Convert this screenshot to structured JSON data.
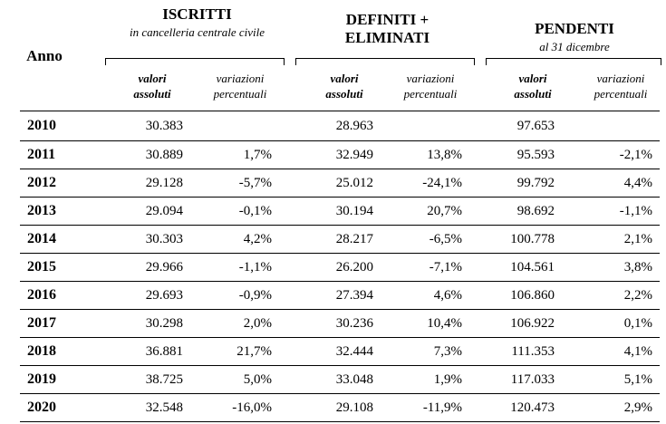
{
  "header": {
    "anno": "Anno",
    "groups": [
      {
        "title": "ISCRITTI",
        "subtitle": "in cancelleria centrale civile"
      },
      {
        "title": "DEFINITI  +\nELIMINATI",
        "subtitle": ""
      },
      {
        "title": "PENDENTI",
        "subtitle": "al 31 dicembre"
      }
    ],
    "sub_abs": "valori\nassoluti",
    "sub_var": "variazioni\npercentuali"
  },
  "rows": [
    {
      "anno": "2010",
      "iscr": "30.383",
      "iscr_var": "",
      "def": "28.963",
      "def_var": "",
      "pend": "97.653",
      "pend_var": ""
    },
    {
      "anno": "2011",
      "iscr": "30.889",
      "iscr_var": "1,7%",
      "def": "32.949",
      "def_var": "13,8%",
      "pend": "95.593",
      "pend_var": "-2,1%"
    },
    {
      "anno": "2012",
      "iscr": "29.128",
      "iscr_var": "-5,7%",
      "def": "25.012",
      "def_var": "-24,1%",
      "pend": "99.792",
      "pend_var": "4,4%"
    },
    {
      "anno": "2013",
      "iscr": "29.094",
      "iscr_var": "-0,1%",
      "def": "30.194",
      "def_var": "20,7%",
      "pend": "98.692",
      "pend_var": "-1,1%"
    },
    {
      "anno": "2014",
      "iscr": "30.303",
      "iscr_var": "4,2%",
      "def": "28.217",
      "def_var": "-6,5%",
      "pend": "100.778",
      "pend_var": "2,1%"
    },
    {
      "anno": "2015",
      "iscr": "29.966",
      "iscr_var": "-1,1%",
      "def": "26.200",
      "def_var": "-7,1%",
      "pend": "104.561",
      "pend_var": "3,8%"
    },
    {
      "anno": "2016",
      "iscr": "29.693",
      "iscr_var": "-0,9%",
      "def": "27.394",
      "def_var": "4,6%",
      "pend": "106.860",
      "pend_var": "2,2%"
    },
    {
      "anno": "2017",
      "iscr": "30.298",
      "iscr_var": "2,0%",
      "def": "30.236",
      "def_var": "10,4%",
      "pend": "106.922",
      "pend_var": "0,1%"
    },
    {
      "anno": "2018",
      "iscr": "36.881",
      "iscr_var": "21,7%",
      "def": "32.444",
      "def_var": "7,3%",
      "pend": "111.353",
      "pend_var": "4,1%"
    },
    {
      "anno": "2019",
      "iscr": "38.725",
      "iscr_var": "5,0%",
      "def": "33.048",
      "def_var": "1,9%",
      "pend": "117.033",
      "pend_var": "5,1%"
    },
    {
      "anno": "2020",
      "iscr": "32.548",
      "iscr_var": "-16,0%",
      "def": "29.108",
      "def_var": "-11,9%",
      "pend": "120.473",
      "pend_var": "2,9%"
    }
  ]
}
